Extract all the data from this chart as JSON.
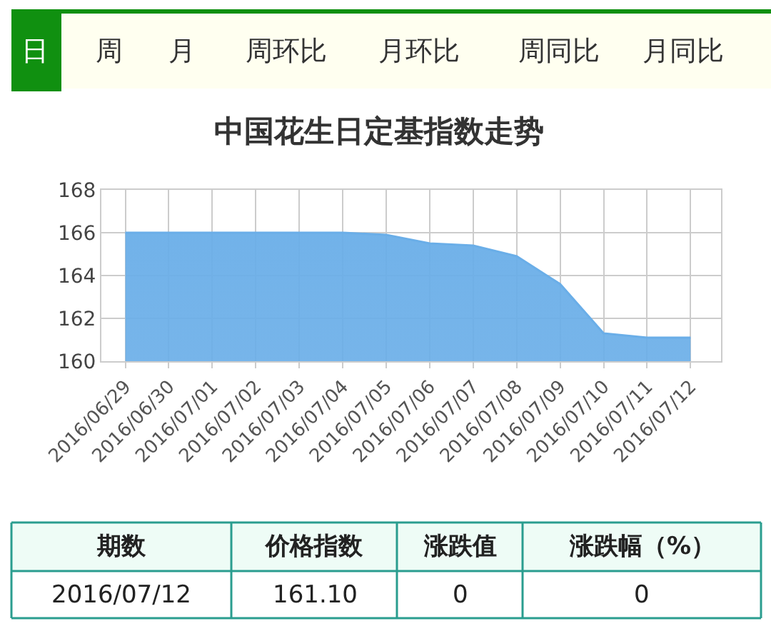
{
  "chart_data": [
    {
      "type": "other",
      "annotations": [
        "日",
        "周",
        "月",
        "周环比",
        "月环比",
        "周同比",
        "月同比"
      ]
    },
    {
      "type": "area",
      "title": "中国花生日定基指数走势",
      "categories": [
        "2016/06/29",
        "2016/06/30",
        "2016/07/01",
        "2016/07/02",
        "2016/07/03",
        "2016/07/04",
        "2016/07/05",
        "2016/07/06",
        "2016/07/07",
        "2016/07/08",
        "2016/07/09",
        "2016/07/10",
        "2016/07/11",
        "2016/07/12"
      ],
      "series": [
        {
          "color": "#6aaee8",
          "values": [
            166.0,
            166.0,
            166.0,
            166.0,
            166.0,
            166.0,
            165.9,
            165.5,
            165.4,
            164.9,
            163.6,
            161.3,
            161.1,
            161.1
          ]
        }
      ],
      "ylim": [
        160,
        168
      ],
      "yticks": [
        160,
        162,
        164,
        166,
        168
      ],
      "grid": true,
      "marker": "none",
      "line_style": "solid"
    },
    {
      "type": "other",
      "annotations": [
        "期数",
        "价格指数",
        "涨跌值",
        "涨跌幅（%）",
        "2016/07/12",
        "161.10",
        "0",
        "0"
      ]
    }
  ]
}
